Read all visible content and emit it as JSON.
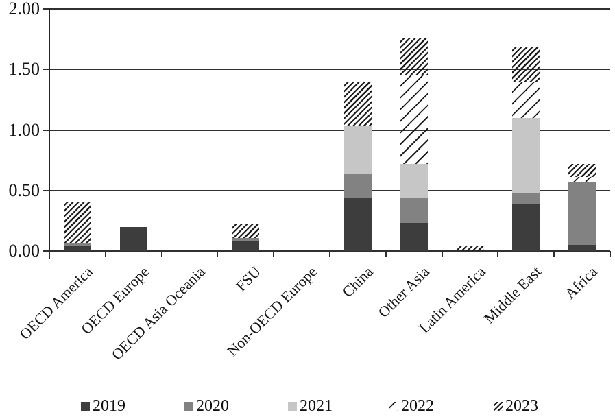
{
  "figure": {
    "background": "#ffffff"
  },
  "chart_data": {
    "type": "bar",
    "stacked": true,
    "title": "",
    "xlabel": "",
    "ylabel": "",
    "grid": true,
    "legend_position": "bottom",
    "ylim": [
      0,
      2.0
    ],
    "yticks": [
      {
        "value": 0.0,
        "label": "0.00"
      },
      {
        "value": 0.5,
        "label": "0.50"
      },
      {
        "value": 1.0,
        "label": "1.00"
      },
      {
        "value": 1.5,
        "label": "1.50"
      },
      {
        "value": 2.0,
        "label": "2.00"
      }
    ],
    "categories": [
      "OECD America",
      "OECD Europe",
      "OECD Asia Oceania",
      "FSU",
      "Non-OECD Europe",
      "China",
      "Other Asia",
      "Latin America",
      "Middle East",
      "Africa"
    ],
    "series": [
      {
        "name": "2019",
        "swatch": "solid",
        "color": "#3d3d3d",
        "values": [
          0.04,
          0.2,
          0.0,
          0.08,
          0.0,
          0.44,
          0.23,
          0.0,
          0.39,
          0.05
        ]
      },
      {
        "name": "2020",
        "swatch": "solid",
        "color": "#828282",
        "values": [
          0.02,
          0.0,
          0.0,
          0.03,
          0.0,
          0.2,
          0.21,
          0.0,
          0.09,
          0.52
        ]
      },
      {
        "name": "2021",
        "swatch": "solid",
        "color": "#c6c6c6",
        "values": [
          0.0,
          0.0,
          0.0,
          0.0,
          0.0,
          0.39,
          0.28,
          0.0,
          0.62,
          0.0
        ]
      },
      {
        "name": "2022",
        "swatch": "hatch-sparse",
        "color": "#1f1f1f",
        "values": [
          0.0,
          0.0,
          0.0,
          0.0,
          0.0,
          0.0,
          0.73,
          0.0,
          0.3,
          0.04
        ]
      },
      {
        "name": "2023",
        "swatch": "hatch-dense",
        "color": "#1f1f1f",
        "values": [
          0.35,
          0.0,
          0.0,
          0.11,
          0.0,
          0.37,
          0.31,
          0.04,
          0.29,
          0.11
        ]
      }
    ]
  }
}
